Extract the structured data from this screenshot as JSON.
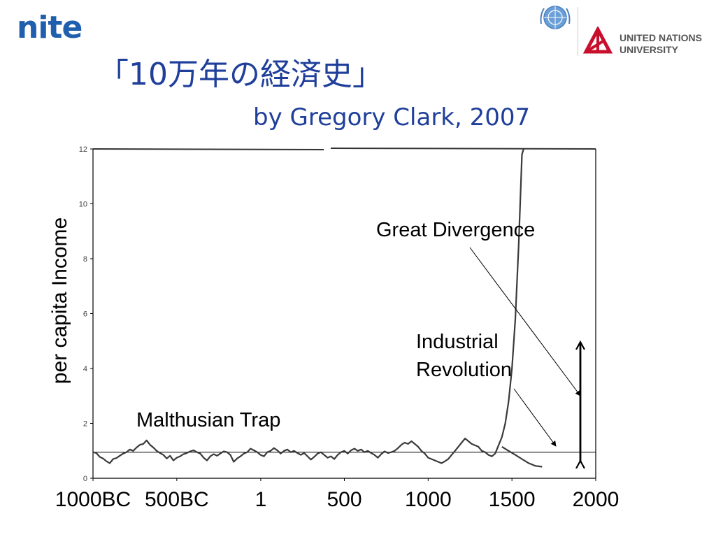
{
  "header": {
    "logo_text": "nite",
    "title": "「10万年の経済史」",
    "subtitle": "by Gregory Clark, 2007",
    "unu_line1": "UNITED NATIONS",
    "unu_line2": "UNIVERSITY"
  },
  "chart_data": {
    "type": "line",
    "title": "",
    "xlabel": "",
    "ylabel": "per capita Income",
    "xlim": [
      -1000,
      2000
    ],
    "ylim": [
      0,
      12
    ],
    "grid": false,
    "y_ticks": [
      0,
      2,
      4,
      6,
      8,
      10,
      12
    ],
    "x_ticks": [
      {
        "value": -1000,
        "label": "1000BC"
      },
      {
        "value": -500,
        "label": "500BC"
      },
      {
        "value": 1,
        "label": "1"
      },
      {
        "value": 500,
        "label": "500"
      },
      {
        "value": 1000,
        "label": "1000"
      },
      {
        "value": 1500,
        "label": "1500"
      },
      {
        "value": 2000,
        "label": "2000"
      }
    ],
    "reference_line": {
      "y": 0.95
    },
    "series": [
      {
        "values": [
          [
            -1000,
            0.95
          ],
          [
            -980,
            0.92
          ],
          [
            -960,
            0.78
          ],
          [
            -940,
            0.72
          ],
          [
            -920,
            0.62
          ],
          [
            -900,
            0.55
          ],
          [
            -880,
            0.7
          ],
          [
            -860,
            0.74
          ],
          [
            -840,
            0.82
          ],
          [
            -820,
            0.9
          ],
          [
            -800,
            0.95
          ],
          [
            -780,
            1.05
          ],
          [
            -760,
            1.0
          ],
          [
            -740,
            1.12
          ],
          [
            -720,
            1.22
          ],
          [
            -700,
            1.25
          ],
          [
            -680,
            1.38
          ],
          [
            -660,
            1.22
          ],
          [
            -640,
            1.12
          ],
          [
            -620,
            1.0
          ],
          [
            -600,
            0.92
          ],
          [
            -580,
            0.85
          ],
          [
            -560,
            0.72
          ],
          [
            -540,
            0.82
          ],
          [
            -520,
            0.65
          ],
          [
            -500,
            0.75
          ],
          [
            -480,
            0.8
          ],
          [
            -460,
            0.88
          ],
          [
            -440,
            0.92
          ],
          [
            -420,
            0.98
          ],
          [
            -400,
            1.02
          ],
          [
            -380,
            0.95
          ],
          [
            -360,
            0.9
          ],
          [
            -340,
            0.75
          ],
          [
            -320,
            0.65
          ],
          [
            -300,
            0.8
          ],
          [
            -280,
            0.88
          ],
          [
            -260,
            0.82
          ],
          [
            -240,
            0.9
          ],
          [
            -220,
            0.98
          ],
          [
            -200,
            0.95
          ],
          [
            -180,
            0.85
          ],
          [
            -160,
            0.6
          ],
          [
            -140,
            0.72
          ],
          [
            -120,
            0.8
          ],
          [
            -100,
            0.9
          ],
          [
            -80,
            0.95
          ],
          [
            -60,
            1.08
          ],
          [
            -40,
            1.02
          ],
          [
            -20,
            0.95
          ],
          [
            0,
            0.85
          ],
          [
            20,
            0.8
          ],
          [
            40,
            0.95
          ],
          [
            60,
            1.0
          ],
          [
            80,
            1.1
          ],
          [
            100,
            1.02
          ],
          [
            120,
            0.9
          ],
          [
            140,
            1.0
          ],
          [
            160,
            1.05
          ],
          [
            180,
            0.95
          ],
          [
            200,
            1.0
          ],
          [
            220,
            0.92
          ],
          [
            240,
            0.85
          ],
          [
            260,
            0.92
          ],
          [
            280,
            0.8
          ],
          [
            300,
            0.68
          ],
          [
            320,
            0.78
          ],
          [
            340,
            0.9
          ],
          [
            360,
            0.95
          ],
          [
            380,
            0.85
          ],
          [
            400,
            0.75
          ],
          [
            420,
            0.8
          ],
          [
            440,
            0.7
          ],
          [
            460,
            0.85
          ],
          [
            480,
            0.95
          ],
          [
            500,
            1.0
          ],
          [
            520,
            0.9
          ],
          [
            540,
            1.02
          ],
          [
            560,
            1.08
          ],
          [
            580,
            1.0
          ],
          [
            600,
            1.05
          ],
          [
            620,
            0.95
          ],
          [
            640,
            1.0
          ],
          [
            660,
            0.92
          ],
          [
            680,
            0.85
          ],
          [
            700,
            0.75
          ],
          [
            720,
            0.88
          ],
          [
            740,
            0.98
          ],
          [
            760,
            0.92
          ],
          [
            780,
            0.95
          ],
          [
            800,
            1.0
          ],
          [
            820,
            1.1
          ],
          [
            840,
            1.22
          ],
          [
            860,
            1.3
          ],
          [
            880,
            1.25
          ],
          [
            900,
            1.35
          ],
          [
            920,
            1.25
          ],
          [
            940,
            1.15
          ],
          [
            960,
            1.0
          ],
          [
            980,
            0.9
          ],
          [
            1000,
            0.75
          ],
          [
            1020,
            0.7
          ],
          [
            1040,
            0.65
          ],
          [
            1060,
            0.6
          ],
          [
            1080,
            0.55
          ],
          [
            1100,
            0.62
          ],
          [
            1120,
            0.7
          ],
          [
            1140,
            0.85
          ],
          [
            1160,
            1.0
          ],
          [
            1180,
            1.15
          ],
          [
            1200,
            1.3
          ],
          [
            1220,
            1.45
          ],
          [
            1240,
            1.35
          ],
          [
            1260,
            1.25
          ],
          [
            1280,
            1.2
          ],
          [
            1300,
            1.15
          ],
          [
            1320,
            1.0
          ],
          [
            1340,
            0.95
          ],
          [
            1360,
            0.85
          ],
          [
            1380,
            0.8
          ],
          [
            1400,
            0.9
          ],
          [
            1420,
            1.2
          ],
          [
            1440,
            1.5
          ],
          [
            1460,
            2.0
          ],
          [
            1480,
            2.8
          ],
          [
            1500,
            4.0
          ],
          [
            1520,
            5.8
          ],
          [
            1540,
            8.5
          ],
          [
            1560,
            11.8
          ],
          [
            1570,
            12.0
          ]
        ]
      },
      {
        "values": [
          [
            1440,
            1.15
          ],
          [
            1480,
            1.0
          ],
          [
            1520,
            0.85
          ],
          [
            1560,
            0.7
          ],
          [
            1600,
            0.55
          ],
          [
            1640,
            0.45
          ],
          [
            1680,
            0.42
          ]
        ]
      }
    ],
    "annotations": [
      {
        "text": "Malthusian Trap"
      },
      {
        "text": "Great Divergence"
      },
      {
        "text": "Industrial"
      },
      {
        "text": "Revolution"
      }
    ]
  }
}
